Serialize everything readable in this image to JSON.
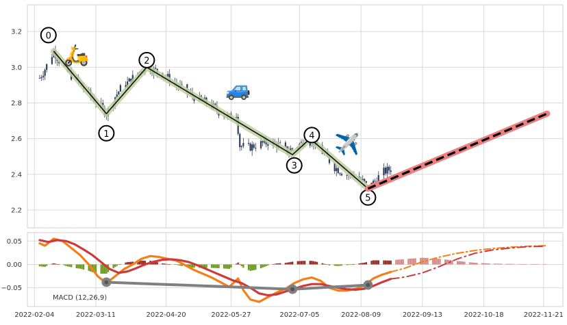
{
  "chart_data": [
    {
      "type": "candlestick",
      "panel": "price",
      "ylim": [
        2.1,
        3.35
      ],
      "yticks": [
        2.2,
        2.4,
        2.6,
        2.8,
        3.0,
        3.2
      ],
      "ytick_labels": [
        "2.2",
        "2.4",
        "2.6",
        "2.8",
        "3.0",
        "3.2"
      ],
      "grid": true,
      "colors": {
        "candle": "#2f3d5c",
        "wave_line": "#111111",
        "wave_halo": "#bfd0a0",
        "forecast_halo": "#ec7f80",
        "forecast_line": "#000000"
      },
      "price_path": [
        [
          "2022-02-07",
          2.94
        ],
        [
          "2022-02-10",
          2.99
        ],
        [
          "2022-02-13",
          3.05
        ],
        [
          "2022-02-15",
          3.09
        ],
        [
          "2022-02-19",
          3.02
        ],
        [
          "2022-02-24",
          2.96
        ],
        [
          "2022-03-01",
          2.92
        ],
        [
          "2022-03-06",
          2.86
        ],
        [
          "2022-03-12",
          2.8
        ],
        [
          "2022-03-17",
          2.74
        ],
        [
          "2022-03-21",
          2.82
        ],
        [
          "2022-03-25",
          2.88
        ],
        [
          "2022-03-30",
          2.92
        ],
        [
          "2022-04-04",
          2.97
        ],
        [
          "2022-04-09",
          3.0
        ],
        [
          "2022-04-14",
          2.98
        ],
        [
          "2022-04-20",
          2.95
        ],
        [
          "2022-04-26",
          2.9
        ],
        [
          "2022-05-02",
          2.86
        ],
        [
          "2022-05-08",
          2.82
        ],
        [
          "2022-05-14",
          2.8
        ],
        [
          "2022-05-20",
          2.75
        ],
        [
          "2022-05-26",
          2.72
        ],
        [
          "2022-05-30",
          2.74
        ],
        [
          "2022-06-01",
          2.56
        ],
        [
          "2022-06-06",
          2.55
        ],
        [
          "2022-06-12",
          2.57
        ],
        [
          "2022-06-18",
          2.58
        ],
        [
          "2022-06-24",
          2.56
        ],
        [
          "2022-06-28",
          2.53
        ],
        [
          "2022-07-02",
          2.55
        ],
        [
          "2022-07-07",
          2.58
        ],
        [
          "2022-07-11",
          2.6
        ],
        [
          "2022-07-15",
          2.56
        ],
        [
          "2022-07-20",
          2.5
        ],
        [
          "2022-07-25",
          2.44
        ],
        [
          "2022-07-31",
          2.4
        ],
        [
          "2022-08-05",
          2.4
        ],
        [
          "2022-08-10",
          2.36
        ],
        [
          "2022-08-13",
          2.33
        ],
        [
          "2022-08-17",
          2.36
        ],
        [
          "2022-08-21",
          2.41
        ],
        [
          "2022-08-26",
          2.43
        ]
      ],
      "wave_points": [
        {
          "label": "0",
          "date": "2022-02-15",
          "value": 3.09
        },
        {
          "label": "1",
          "date": "2022-03-17",
          "value": 2.74
        },
        {
          "label": "2",
          "date": "2022-04-09",
          "value": 3.0
        },
        {
          "label": "3",
          "date": "2022-07-01",
          "value": 2.51
        },
        {
          "label": "4",
          "date": "2022-07-11",
          "value": 2.6
        },
        {
          "label": "5",
          "date": "2022-08-13",
          "value": 2.32
        }
      ],
      "wave_label_positions": [
        {
          "label": "0",
          "date": "2022-02-12",
          "value": 3.18
        },
        {
          "label": "1",
          "date": "2022-03-17",
          "value": 2.63
        },
        {
          "label": "2",
          "date": "2022-04-09",
          "value": 3.04
        },
        {
          "label": "3",
          "date": "2022-07-02",
          "value": 2.45
        },
        {
          "label": "4",
          "date": "2022-07-12",
          "value": 2.62
        },
        {
          "label": "5",
          "date": "2022-08-13",
          "value": 2.27
        }
      ],
      "forecast": [
        {
          "date": "2022-08-13",
          "value": 2.32
        },
        {
          "date": "2022-11-23",
          "value": 2.74
        }
      ],
      "pictograms": [
        {
          "name": "scooter-icon",
          "glyph": "🛵",
          "date": "2022-02-28",
          "value": 3.03
        },
        {
          "name": "car-icon",
          "glyph": "🚙",
          "date": "2022-05-31",
          "value": 2.84
        },
        {
          "name": "airplane-icon",
          "glyph": "✈️",
          "date": "2022-08-01",
          "value": 2.53
        }
      ]
    },
    {
      "type": "line",
      "panel": "macd",
      "ylim": [
        -0.09,
        0.068
      ],
      "yticks": [
        -0.05,
        0.0,
        0.05
      ],
      "ytick_labels": [
        "−0.05",
        "0.00",
        "0.05"
      ],
      "grid": true,
      "annotation": "MACD (12,26,9)",
      "x_range": [
        "2022-01-31",
        "2022-12-02"
      ],
      "xticks": [
        "2022-02-04",
        "2022-03-11",
        "2022-04-20",
        "2022-05-27",
        "2022-07-05",
        "2022-08-09",
        "2022-09-13",
        "2022-10-18",
        "2022-11-21"
      ],
      "xtick_labels": [
        "2022-02-04",
        "2022-03-11",
        "2022-04-20",
        "2022-05-27",
        "2022-07-05",
        "2022-08-09",
        "2022-09-13",
        "2022-10-18",
        "2022-11-21"
      ],
      "colors": {
        "macd": "#f47f17",
        "signal": "#cc3b3b",
        "hist_up": "#9b2b22",
        "hist_down": "#6f9b20",
        "hist_forecast": "#d88a8a",
        "divergence": "#808080"
      },
      "series": [
        {
          "kind": "macd",
          "points": [
            [
              "2022-02-07",
              0.045
            ],
            [
              "2022-02-10",
              0.04
            ],
            [
              "2022-02-15",
              0.055
            ],
            [
              "2022-02-20",
              0.05
            ],
            [
              "2022-02-25",
              0.035
            ],
            [
              "2022-03-02",
              0.02
            ],
            [
              "2022-03-07",
              0.0
            ],
            [
              "2022-03-12",
              -0.025
            ],
            [
              "2022-03-17",
              -0.04
            ],
            [
              "2022-03-22",
              -0.025
            ],
            [
              "2022-03-27",
              -0.01
            ],
            [
              "2022-04-01",
              0.0
            ],
            [
              "2022-04-06",
              0.012
            ],
            [
              "2022-04-11",
              0.018
            ],
            [
              "2022-04-16",
              0.016
            ],
            [
              "2022-04-21",
              0.012
            ],
            [
              "2022-04-26",
              0.008
            ],
            [
              "2022-05-01",
              -0.002
            ],
            [
              "2022-05-06",
              -0.012
            ],
            [
              "2022-05-11",
              -0.02
            ],
            [
              "2022-05-16",
              -0.028
            ],
            [
              "2022-05-21",
              -0.038
            ],
            [
              "2022-05-26",
              -0.048
            ],
            [
              "2022-05-31",
              -0.03
            ],
            [
              "2022-06-03",
              -0.055
            ],
            [
              "2022-06-07",
              -0.075
            ],
            [
              "2022-06-12",
              -0.08
            ],
            [
              "2022-06-17",
              -0.07
            ],
            [
              "2022-06-22",
              -0.06
            ],
            [
              "2022-06-27",
              -0.052
            ],
            [
              "2022-07-02",
              -0.04
            ],
            [
              "2022-07-07",
              -0.032
            ],
            [
              "2022-07-12",
              -0.028
            ],
            [
              "2022-07-17",
              -0.035
            ],
            [
              "2022-07-22",
              -0.05
            ],
            [
              "2022-07-27",
              -0.056
            ],
            [
              "2022-08-01",
              -0.056
            ],
            [
              "2022-08-06",
              -0.052
            ],
            [
              "2022-08-11",
              -0.045
            ],
            [
              "2022-08-16",
              -0.03
            ],
            [
              "2022-08-21",
              -0.022
            ],
            [
              "2022-08-26",
              -0.016
            ]
          ]
        },
        {
          "kind": "signal",
          "points": [
            [
              "2022-02-07",
              0.052
            ],
            [
              "2022-02-12",
              0.048
            ],
            [
              "2022-02-17",
              0.052
            ],
            [
              "2022-02-22",
              0.05
            ],
            [
              "2022-02-27",
              0.043
            ],
            [
              "2022-03-04",
              0.032
            ],
            [
              "2022-03-09",
              0.02
            ],
            [
              "2022-03-14",
              0.005
            ],
            [
              "2022-03-19",
              -0.01
            ],
            [
              "2022-03-24",
              -0.018
            ],
            [
              "2022-03-29",
              -0.015
            ],
            [
              "2022-04-03",
              -0.008
            ],
            [
              "2022-04-08",
              0.0
            ],
            [
              "2022-04-13",
              0.006
            ],
            [
              "2022-04-18",
              0.01
            ],
            [
              "2022-04-23",
              0.011
            ],
            [
              "2022-04-28",
              0.009
            ],
            [
              "2022-05-03",
              0.005
            ],
            [
              "2022-05-08",
              -0.002
            ],
            [
              "2022-05-13",
              -0.01
            ],
            [
              "2022-05-18",
              -0.018
            ],
            [
              "2022-05-23",
              -0.026
            ],
            [
              "2022-05-28",
              -0.034
            ],
            [
              "2022-06-02",
              -0.04
            ],
            [
              "2022-06-07",
              -0.05
            ],
            [
              "2022-06-12",
              -0.062
            ],
            [
              "2022-06-17",
              -0.066
            ],
            [
              "2022-06-22",
              -0.064
            ],
            [
              "2022-06-27",
              -0.058
            ],
            [
              "2022-07-02",
              -0.052
            ],
            [
              "2022-07-07",
              -0.046
            ],
            [
              "2022-07-12",
              -0.042
            ],
            [
              "2022-07-17",
              -0.042
            ],
            [
              "2022-07-22",
              -0.046
            ],
            [
              "2022-07-27",
              -0.05
            ],
            [
              "2022-08-01",
              -0.053
            ],
            [
              "2022-08-06",
              -0.054
            ],
            [
              "2022-08-11",
              -0.052
            ],
            [
              "2022-08-16",
              -0.046
            ],
            [
              "2022-08-21",
              -0.038
            ],
            [
              "2022-08-26",
              -0.031
            ]
          ]
        },
        {
          "kind": "macd_forecast",
          "points": [
            [
              "2022-08-26",
              -0.016
            ],
            [
              "2022-09-03",
              -0.008
            ],
            [
              "2022-09-13",
              0.006
            ],
            [
              "2022-09-23",
              0.016
            ],
            [
              "2022-10-03",
              0.024
            ],
            [
              "2022-10-13",
              0.03
            ],
            [
              "2022-10-23",
              0.034
            ],
            [
              "2022-11-02",
              0.037
            ],
            [
              "2022-11-12",
              0.039
            ],
            [
              "2022-11-22",
              0.04
            ]
          ]
        },
        {
          "kind": "signal_forecast",
          "points": [
            [
              "2022-08-26",
              -0.031
            ],
            [
              "2022-09-03",
              -0.027
            ],
            [
              "2022-09-13",
              -0.018
            ],
            [
              "2022-09-23",
              -0.004
            ],
            [
              "2022-10-03",
              0.012
            ],
            [
              "2022-10-13",
              0.024
            ],
            [
              "2022-10-23",
              0.031
            ],
            [
              "2022-11-02",
              0.035
            ],
            [
              "2022-11-12",
              0.038
            ],
            [
              "2022-11-22",
              0.039
            ]
          ]
        }
      ],
      "histogram_forecast_range": [
        "2022-08-28",
        "2022-11-22"
      ],
      "divergence_points": [
        {
          "date": "2022-03-17",
          "value": -0.038
        },
        {
          "date": "2022-07-01",
          "value": -0.053
        },
        {
          "date": "2022-08-13",
          "value": -0.044
        }
      ]
    }
  ]
}
